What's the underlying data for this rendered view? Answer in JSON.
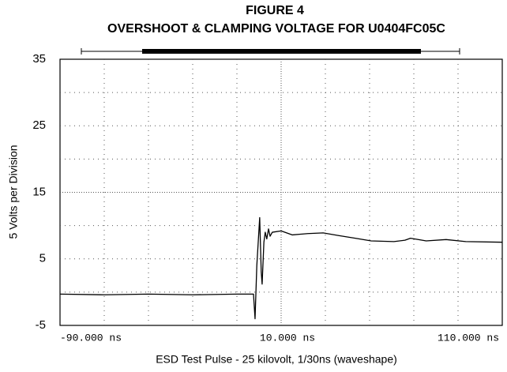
{
  "chart_data": {
    "type": "line",
    "title": "FIGURE 4",
    "subtitle": "OVERSHOOT & CLAMPING VOLTAGE FOR U0404FC05C",
    "xlabel": "ESD Test Pulse - 25 kilovolt, 1/30ns (waveshape)",
    "ylabel": "5 Volts per Division",
    "xlim": [
      -90,
      110
    ],
    "ylim": [
      -5,
      35
    ],
    "xticks": [
      {
        "value": -90,
        "label": "-90.000 ns"
      },
      {
        "value": 10,
        "label": "10.000 ns"
      },
      {
        "value": 110,
        "label": "110.000 ns"
      }
    ],
    "yticks": [
      -5,
      5,
      15,
      25,
      35
    ],
    "x_minor_ticks": [
      -70,
      -50,
      -30,
      -10,
      30,
      50,
      70,
      90
    ],
    "y_minor_ticks": [
      0,
      10,
      20,
      30
    ],
    "grid": true,
    "series": [
      {
        "color": "#000000",
        "x": [
          -90,
          -70,
          -50,
          -30,
          -10,
          -2.5,
          -1.8,
          -1.0,
          0.3,
          1.0,
          1.4,
          2.2,
          2.8,
          3.5,
          4.3,
          5,
          6,
          10,
          15,
          22,
          29,
          36,
          43.5,
          50.7,
          61,
          66,
          68.5,
          75.6,
          84.6,
          93.5,
          110
        ],
        "values": [
          -0.3,
          -0.4,
          -0.3,
          -0.4,
          -0.3,
          -0.3,
          -4.0,
          4.0,
          11.2,
          3.0,
          1.2,
          7.5,
          9.0,
          8.0,
          9.5,
          8.4,
          9.0,
          9.2,
          8.6,
          8.8,
          8.9,
          8.5,
          8.1,
          7.7,
          7.6,
          7.8,
          8.1,
          7.7,
          7.9,
          7.6,
          7.5
        ]
      }
    ]
  }
}
